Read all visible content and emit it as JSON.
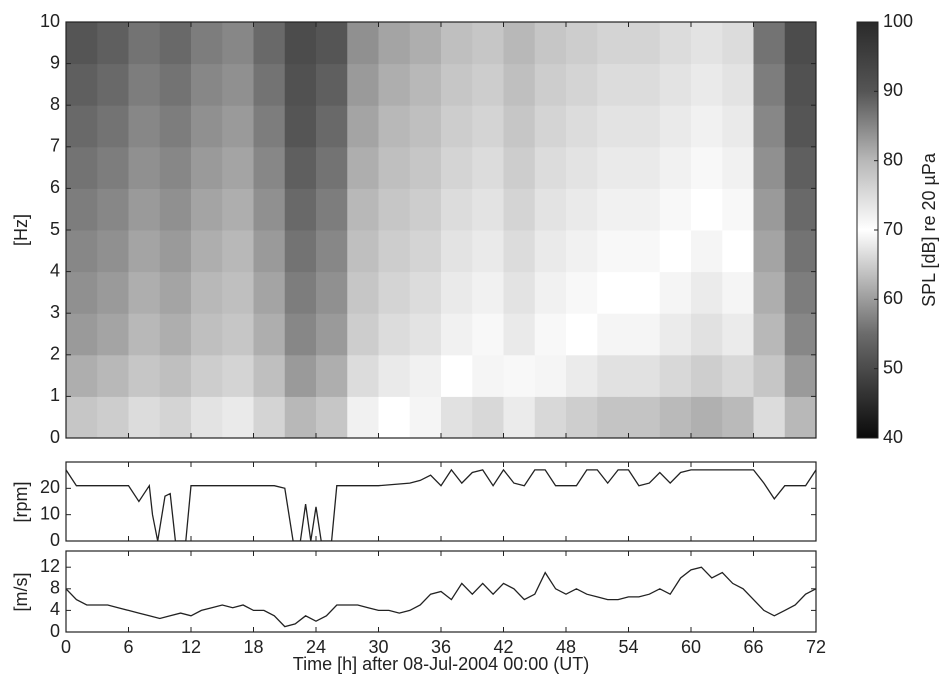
{
  "chart_data": [
    {
      "type": "heatmap",
      "ylabel": "[Hz]",
      "x": [
        0,
        3,
        6,
        9,
        12,
        15,
        18,
        21,
        24,
        27,
        30,
        33,
        36,
        39,
        42,
        45,
        48,
        51,
        54,
        57,
        60,
        63,
        66,
        69,
        72
      ],
      "y": [
        0,
        1,
        2,
        3,
        4,
        5,
        6,
        7,
        8,
        9,
        10
      ],
      "z": [
        [
          78,
          77,
          75,
          76,
          74,
          73,
          76,
          80,
          78,
          72,
          70,
          69,
          67,
          66,
          68,
          66,
          65,
          64,
          64,
          63,
          62,
          63,
          75,
          80
        ],
        [
          81,
          80,
          78,
          79,
          77,
          76,
          79,
          83,
          81,
          75,
          73,
          72,
          70,
          69,
          71,
          69,
          68,
          67,
          67,
          66,
          65,
          66,
          78,
          83
        ],
        [
          83,
          82,
          80,
          81,
          79,
          78,
          81,
          85,
          83,
          77,
          75,
          74,
          72,
          71,
          73,
          71,
          70,
          69,
          69,
          68,
          67,
          68,
          80,
          85
        ],
        [
          84,
          83,
          81,
          82,
          80,
          79,
          82,
          86,
          84,
          78,
          76,
          75,
          73,
          72,
          74,
          72,
          71,
          70,
          70,
          69,
          68,
          69,
          81,
          86
        ],
        [
          85,
          84,
          82,
          83,
          81,
          80,
          83,
          87,
          85,
          79,
          77,
          76,
          74,
          73,
          75,
          73,
          72,
          71,
          71,
          70,
          69,
          70,
          82,
          87
        ],
        [
          86,
          85,
          83,
          84,
          82,
          81,
          84,
          88,
          86,
          80,
          78,
          77,
          75,
          74,
          76,
          74,
          73,
          72,
          72,
          71,
          70,
          71,
          83,
          88
        ],
        [
          87,
          86,
          84,
          85,
          83,
          82,
          85,
          89,
          87,
          81,
          79,
          78,
          76,
          75,
          77,
          75,
          74,
          73,
          73,
          72,
          71,
          72,
          84,
          89
        ],
        [
          88,
          87,
          85,
          86,
          84,
          83,
          86,
          90,
          88,
          82,
          80,
          79,
          77,
          76,
          78,
          76,
          75,
          74,
          74,
          73,
          72,
          73,
          85,
          90
        ],
        [
          89,
          88,
          86,
          87,
          85,
          84,
          87,
          91,
          89,
          83,
          81,
          80,
          78,
          77,
          79,
          77,
          76,
          75,
          75,
          74,
          73,
          74,
          86,
          91
        ],
        [
          90,
          89,
          87,
          88,
          86,
          85,
          88,
          92,
          90,
          84,
          82,
          81,
          79,
          78,
          80,
          78,
          77,
          76,
          76,
          75,
          74,
          75,
          87,
          92
        ]
      ],
      "xlim": [
        0,
        72
      ],
      "ylim": [
        0,
        10
      ],
      "yticks": [
        0,
        1,
        2,
        3,
        4,
        5,
        6,
        7,
        8,
        9,
        10
      ],
      "colorbar_label": "SPL [dB] re 20 µPa",
      "clim": [
        40,
        100
      ],
      "cticks": [
        40,
        50,
        60,
        70,
        80,
        90,
        100
      ],
      "colormap": [
        {
          "value": 40,
          "color": "#0a0a0a"
        },
        {
          "value": 55,
          "color": "#6b6b6b"
        },
        {
          "value": 70,
          "color": "#ffffff"
        },
        {
          "value": 80,
          "color": "#b8b8b8"
        },
        {
          "value": 90,
          "color": "#555555"
        },
        {
          "value": 100,
          "color": "#2a2a2a"
        }
      ]
    },
    {
      "type": "line",
      "ylabel": "[rpm]",
      "color": "#222222",
      "x": [
        0,
        1,
        6,
        7,
        8,
        8.3,
        8.8,
        9.5,
        10,
        10.5,
        11.5,
        12,
        20,
        21,
        21.8,
        22.5,
        23,
        23.5,
        24,
        24.5,
        25.5,
        26,
        30,
        33,
        34,
        35,
        36,
        37,
        38,
        39,
        40,
        41,
        42,
        43,
        44,
        45,
        46,
        47,
        49,
        50,
        51,
        52,
        53,
        54,
        55,
        56,
        57,
        58,
        59,
        60,
        66,
        67,
        68,
        69,
        71,
        72
      ],
      "values": [
        27,
        21,
        21,
        15,
        21,
        10,
        0,
        17,
        18,
        0,
        0,
        21,
        21,
        20,
        0,
        0,
        14,
        0,
        13,
        0,
        0,
        21,
        21,
        22,
        23,
        25,
        21,
        27,
        22,
        26,
        27,
        21,
        27,
        22,
        21,
        27,
        27,
        21,
        21,
        27,
        27,
        22,
        27,
        27,
        21,
        22,
        26,
        22,
        26,
        27,
        27,
        22,
        16,
        21,
        21,
        27
      ],
      "xlim": [
        0,
        72
      ],
      "ylim": [
        0,
        30
      ],
      "yticks": [
        0,
        10,
        20
      ]
    },
    {
      "type": "line",
      "ylabel": "[m/s]",
      "xlabel": "Time [h] after 08-Jul-2004 00:00 (UT)",
      "color": "#222222",
      "x": [
        0,
        1,
        2,
        3,
        4,
        5,
        6,
        7,
        8,
        9,
        10,
        11,
        12,
        13,
        14,
        15,
        16,
        17,
        18,
        19,
        20,
        21,
        22,
        23,
        24,
        25,
        26,
        27,
        28,
        29,
        30,
        31,
        32,
        33,
        34,
        35,
        36,
        37,
        38,
        39,
        40,
        41,
        42,
        43,
        44,
        45,
        46,
        47,
        48,
        49,
        50,
        51,
        52,
        53,
        54,
        55,
        56,
        57,
        58,
        59,
        60,
        61,
        62,
        63,
        64,
        65,
        66,
        67,
        68,
        69,
        70,
        71,
        72
      ],
      "values": [
        8,
        6,
        5,
        5,
        5,
        4.5,
        4,
        3.5,
        3,
        2.5,
        3,
        3.5,
        3,
        4,
        4.5,
        5,
        4.5,
        5,
        4,
        4,
        3,
        1,
        1.5,
        3,
        2,
        3,
        5,
        5,
        5,
        4.5,
        4,
        4,
        3.5,
        4,
        5,
        7,
        7.5,
        6,
        9,
        7,
        9,
        7,
        9,
        8,
        6,
        7,
        11,
        8,
        7,
        8,
        7,
        6.5,
        6,
        6,
        6.5,
        6.5,
        7,
        8,
        7,
        10,
        11.5,
        12,
        10,
        11,
        9,
        8,
        6,
        4,
        3,
        4,
        5,
        7,
        8
      ],
      "xlim": [
        0,
        72
      ],
      "ylim": [
        0,
        15
      ],
      "yticks": [
        0,
        4,
        8,
        12
      ],
      "xticks": [
        0,
        6,
        12,
        18,
        24,
        30,
        36,
        42,
        48,
        54,
        60,
        66,
        72
      ]
    }
  ]
}
